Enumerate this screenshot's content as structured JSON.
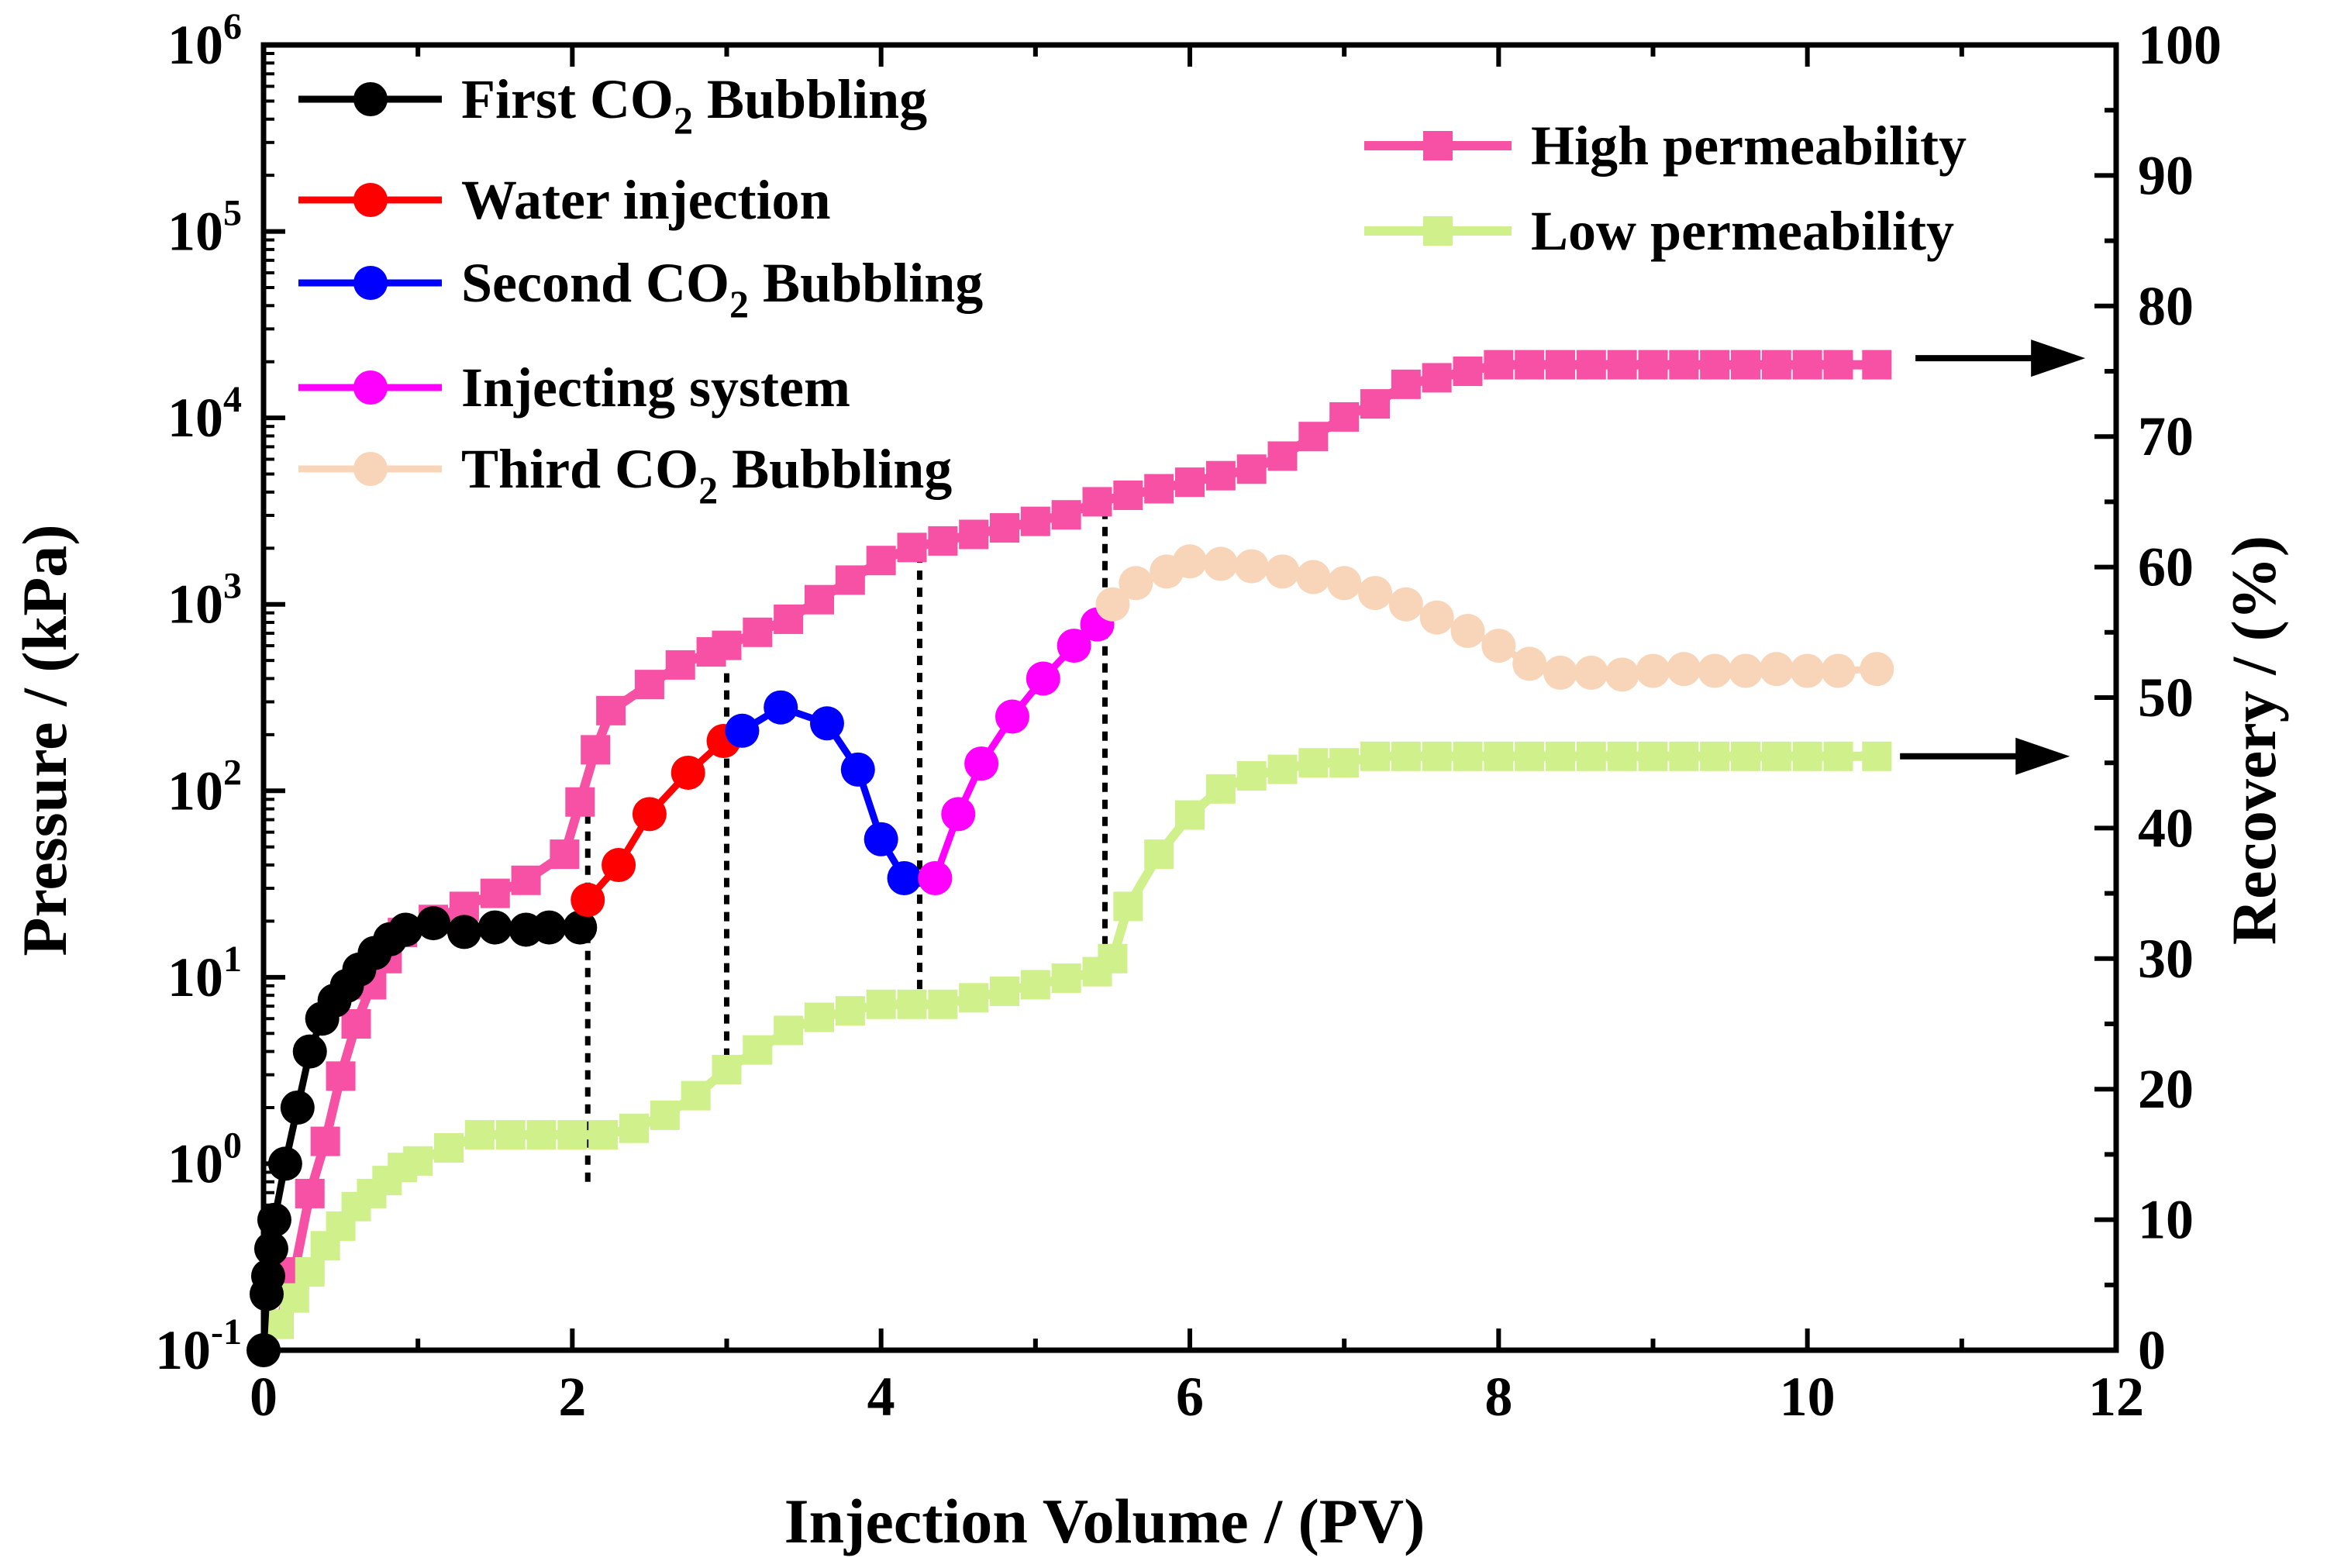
{
  "chart_data": {
    "type": "line",
    "xlabel": "Injection Volume / (PV)",
    "ylabel_left": "Pressure / (kPa)",
    "ylabel_right": "Recovery / (%)",
    "xlim": [
      0,
      12
    ],
    "ylim_left": [
      0.1,
      1000000
    ],
    "ylim_left_scale": "log",
    "ylim_right": [
      0,
      100
    ],
    "x_ticks": [
      "0",
      "2",
      "4",
      "6",
      "8",
      "10",
      "12"
    ],
    "y_left_ticks": [
      {
        "base": "10",
        "exp": "-1"
      },
      {
        "base": "10",
        "exp": "0"
      },
      {
        "base": "10",
        "exp": "1"
      },
      {
        "base": "10",
        "exp": "2"
      },
      {
        "base": "10",
        "exp": "3"
      },
      {
        "base": "10",
        "exp": "4"
      },
      {
        "base": "10",
        "exp": "5"
      },
      {
        "base": "10",
        "exp": "6"
      }
    ],
    "y_right_ticks": [
      "0",
      "10",
      "20",
      "30",
      "40",
      "50",
      "60",
      "70",
      "80",
      "90",
      "100"
    ],
    "pressure_series": [
      {
        "name": "First CO2 Bubbling",
        "legend": {
          "main": "First CO",
          "sub": "2",
          "rest": " Bubbling"
        },
        "color": "#000000",
        "x": [
          0.0,
          0.02,
          0.03,
          0.05,
          0.07,
          0.14,
          0.22,
          0.3,
          0.38,
          0.46,
          0.54,
          0.62,
          0.72,
          0.82,
          0.92,
          1.1,
          1.3,
          1.5,
          1.7,
          1.85,
          2.05
        ],
        "y": [
          0.1,
          0.2,
          0.25,
          0.35,
          0.5,
          1.0,
          2.0,
          4.0,
          6.0,
          7.5,
          9.0,
          11.0,
          13.5,
          16.0,
          18.0,
          19.5,
          17.5,
          18.5,
          18.0,
          18.5,
          18.5
        ]
      },
      {
        "name": "Water injection",
        "legend": {
          "main": "Water injection",
          "sub": "",
          "rest": ""
        },
        "color": "#ff0000",
        "x": [
          2.1,
          2.3,
          2.5,
          2.75,
          2.98
        ],
        "y": [
          26,
          40,
          75,
          125,
          185
        ]
      },
      {
        "name": "Second CO2 Bubbling",
        "legend": {
          "main": "Second CO",
          "sub": "2",
          "rest": " Bubbling"
        },
        "color": "#0000ff",
        "x": [
          3.1,
          3.35,
          3.65,
          3.85,
          4.0,
          4.15
        ],
        "y": [
          210,
          280,
          230,
          130,
          55,
          34
        ]
      },
      {
        "name": "Injecting system",
        "legend": {
          "main": "Injecting system",
          "sub": "",
          "rest": ""
        },
        "color": "#ff00ff",
        "x": [
          4.35,
          4.5,
          4.65,
          4.85,
          5.05,
          5.25,
          5.4
        ],
        "y": [
          34,
          75,
          140,
          250,
          400,
          600,
          780
        ]
      },
      {
        "name": "Third CO2 Bubbling",
        "legend": {
          "main": "Third CO",
          "sub": "2",
          "rest": " Bubbling"
        },
        "color": "#f8d5b8",
        "x": [
          5.5,
          5.65,
          5.85,
          6.0,
          6.2,
          6.4,
          6.6,
          6.8,
          7.0,
          7.2,
          7.4,
          7.6,
          7.8,
          8.0,
          8.2,
          8.4,
          8.6,
          8.8,
          9.0,
          9.2,
          9.4,
          9.6,
          9.8,
          10.0,
          10.2,
          10.45
        ],
        "y": [
          1000,
          1300,
          1500,
          1700,
          1650,
          1600,
          1500,
          1400,
          1300,
          1150,
          1000,
          850,
          720,
          600,
          480,
          430,
          430,
          420,
          440,
          450,
          440,
          440,
          450,
          440,
          440,
          450
        ]
      }
    ],
    "recovery_series": [
      {
        "name": "High permeability",
        "legend": "High permeability",
        "color": "#f751a6",
        "x": [
          0.1,
          0.2,
          0.3,
          0.4,
          0.5,
          0.6,
          0.7,
          0.8,
          0.9,
          1.1,
          1.3,
          1.5,
          1.7,
          1.95,
          2.05,
          2.15,
          2.25,
          2.5,
          2.7,
          2.9,
          3.0,
          3.2,
          3.4,
          3.6,
          3.8,
          4.0,
          4.2,
          4.4,
          4.6,
          4.8,
          5.0,
          5.2,
          5.4,
          5.6,
          5.8,
          6.0,
          6.2,
          6.4,
          6.6,
          6.8,
          7.0,
          7.2,
          7.4,
          7.6,
          7.8,
          8.0,
          8.2,
          8.4,
          8.6,
          8.8,
          9.0,
          9.2,
          9.4,
          9.6,
          9.8,
          10.0,
          10.2,
          10.45
        ],
        "y": [
          2,
          6,
          12,
          16,
          21,
          25,
          28,
          30,
          32,
          33,
          34,
          35,
          36,
          38,
          42,
          46,
          49,
          51,
          52.5,
          53.5,
          54,
          55,
          56,
          57.5,
          59,
          60.5,
          61.5,
          62,
          62.5,
          63,
          63.5,
          64,
          65,
          65.5,
          66,
          66.5,
          67,
          67.5,
          68.5,
          70,
          71.5,
          72.5,
          74,
          74.5,
          75,
          75.5,
          75.5,
          75.5,
          75.5,
          75.5,
          75.5,
          75.5,
          75.5,
          75.5,
          75.5,
          75.5,
          75.5,
          75.5
        ]
      },
      {
        "name": "Low permeability",
        "legend": "Low permeability",
        "color": "#d0f08c",
        "x": [
          0.1,
          0.2,
          0.3,
          0.4,
          0.5,
          0.6,
          0.7,
          0.8,
          0.9,
          1.0,
          1.2,
          1.4,
          1.6,
          1.8,
          2.0,
          2.2,
          2.4,
          2.6,
          2.8,
          3.0,
          3.2,
          3.4,
          3.6,
          3.8,
          4.0,
          4.2,
          4.4,
          4.6,
          4.8,
          5.0,
          5.2,
          5.4,
          5.5,
          5.6,
          5.8,
          6.0,
          6.2,
          6.4,
          6.6,
          6.8,
          7.0,
          7.2,
          7.4,
          7.6,
          7.8,
          8.0,
          8.2,
          8.4,
          8.6,
          8.8,
          9.0,
          9.2,
          9.4,
          9.6,
          9.8,
          10.0,
          10.2,
          10.45
        ],
        "y": [
          2,
          4,
          6,
          8,
          9.5,
          11,
          12,
          13,
          14,
          14.5,
          15.5,
          16.5,
          16.5,
          16.5,
          16.5,
          16.5,
          17,
          18,
          19.5,
          21.5,
          23,
          24.5,
          25.5,
          26,
          26.5,
          26.5,
          26.5,
          27,
          27.5,
          28,
          28.5,
          29,
          30,
          34,
          38,
          41,
          43,
          44,
          44.5,
          45,
          45,
          45.5,
          45.5,
          45.5,
          45.5,
          45.5,
          45.5,
          45.5,
          45.5,
          45.5,
          45.5,
          45.5,
          45.5,
          45.5,
          45.5,
          45.5,
          45.5,
          45.5
        ]
      }
    ],
    "dotted_lines": [
      {
        "x": 2.1,
        "y_from": 0.8,
        "y_to": 90
      },
      {
        "x": 3.0,
        "y_from": 3.0,
        "y_to": 450
      },
      {
        "x": 4.25,
        "y_from": 7.0,
        "y_to": 2200
      },
      {
        "x": 5.45,
        "y_from": 12.0,
        "y_to": 4300
      }
    ],
    "arrows": [
      {
        "series": "High permeability",
        "y": 76,
        "x_from": 10.7,
        "x_to": 11.8
      },
      {
        "series": "Low permeability",
        "y": 45.5,
        "x_from": 10.6,
        "x_to": 11.7
      }
    ],
    "legend_left_placement": "top-left",
    "legend_right_placement": "top-right",
    "grid": false
  }
}
